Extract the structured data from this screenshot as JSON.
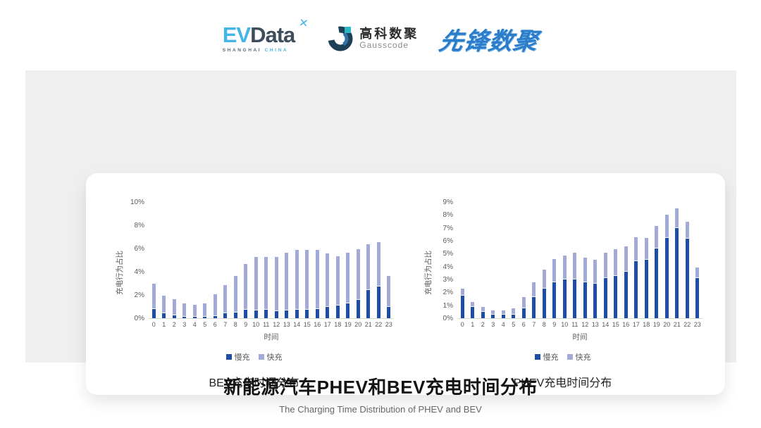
{
  "brand": {
    "evdata": {
      "ev": "EV",
      "data": "Data",
      "x_mark": "✕",
      "sub_left": "SHANGHAI",
      "sub_right": "CHINA"
    },
    "gausscode": {
      "cn": "高科数聚",
      "en": "Gausscode"
    },
    "pioneer": {
      "text": "先锋数聚"
    }
  },
  "colors": {
    "slow": "#1d4da6",
    "fast": "#a2aad8",
    "evdata_blue": "#45b5e7",
    "evdata_dark": "#3e4d5c",
    "gauss_navy": "#1d4056",
    "gauss_mid": "#2e74aa",
    "gauss_teal": "#2ab8c5",
    "pioneer_blue": "#2b7dcb",
    "panel_gray": "#efefef"
  },
  "title": {
    "main": "新能源汽车PHEV和BEV充电时间分布",
    "sub": "The Charging Time Distribution of PHEV and BEV"
  },
  "chart_data": [
    {
      "type": "bar",
      "stacked": true,
      "name": "BEV充电时间分布",
      "categories": [
        "0",
        "1",
        "2",
        "3",
        "4",
        "5",
        "6",
        "7",
        "8",
        "9",
        "10",
        "11",
        "12",
        "13",
        "14",
        "15",
        "16",
        "17",
        "18",
        "19",
        "20",
        "21",
        "22",
        "23"
      ],
      "series": [
        {
          "name": "慢充",
          "color": "#1d4da6",
          "values": [
            0.8,
            0.4,
            0.25,
            0.15,
            0.1,
            0.1,
            0.2,
            0.4,
            0.5,
            0.7,
            0.65,
            0.7,
            0.6,
            0.65,
            0.7,
            0.7,
            0.8,
            1.0,
            1.1,
            1.3,
            1.6,
            2.4,
            2.7,
            1.0
          ]
        },
        {
          "name": "快充",
          "color": "#a2aad8",
          "values": [
            2.1,
            1.5,
            1.3,
            1.05,
            1.0,
            1.1,
            1.8,
            2.4,
            3.1,
            3.9,
            4.55,
            4.5,
            4.6,
            4.95,
            5.1,
            5.1,
            5.0,
            4.5,
            4.2,
            4.3,
            4.3,
            3.9,
            3.8,
            2.6
          ]
        }
      ],
      "xlabel": "时间",
      "ylabel": "充电行为占比",
      "ylim": [
        0,
        10
      ],
      "ytick_step": 2,
      "ytick_suffix": "%",
      "grid": false,
      "legend_position": "bottom"
    },
    {
      "type": "bar",
      "stacked": true,
      "name": "PHEV充电时间分布",
      "categories": [
        "0",
        "1",
        "2",
        "3",
        "4",
        "5",
        "6",
        "7",
        "8",
        "9",
        "10",
        "11",
        "12",
        "13",
        "14",
        "15",
        "16",
        "17",
        "18",
        "19",
        "20",
        "21",
        "22",
        "23"
      ],
      "series": [
        {
          "name": "慢充",
          "color": "#1d4da6",
          "values": [
            1.75,
            0.85,
            0.5,
            0.3,
            0.25,
            0.3,
            0.75,
            1.65,
            2.3,
            2.8,
            3.0,
            3.0,
            2.8,
            2.65,
            3.1,
            3.3,
            3.6,
            4.4,
            4.55,
            5.4,
            6.2,
            7.0,
            6.15,
            3.1
          ]
        },
        {
          "name": "快充",
          "color": "#a2aad8",
          "values": [
            0.5,
            0.35,
            0.3,
            0.25,
            0.3,
            0.4,
            0.85,
            1.1,
            1.4,
            1.75,
            1.8,
            2.0,
            1.85,
            1.85,
            1.9,
            2.0,
            1.9,
            1.8,
            1.6,
            1.7,
            1.75,
            1.45,
            1.25,
            0.75
          ]
        }
      ],
      "xlabel": "时间",
      "ylabel": "充电行为占比",
      "ylim": [
        0,
        9
      ],
      "ytick_step": 1,
      "ytick_suffix": "%",
      "grid": false,
      "legend_position": "bottom"
    }
  ]
}
